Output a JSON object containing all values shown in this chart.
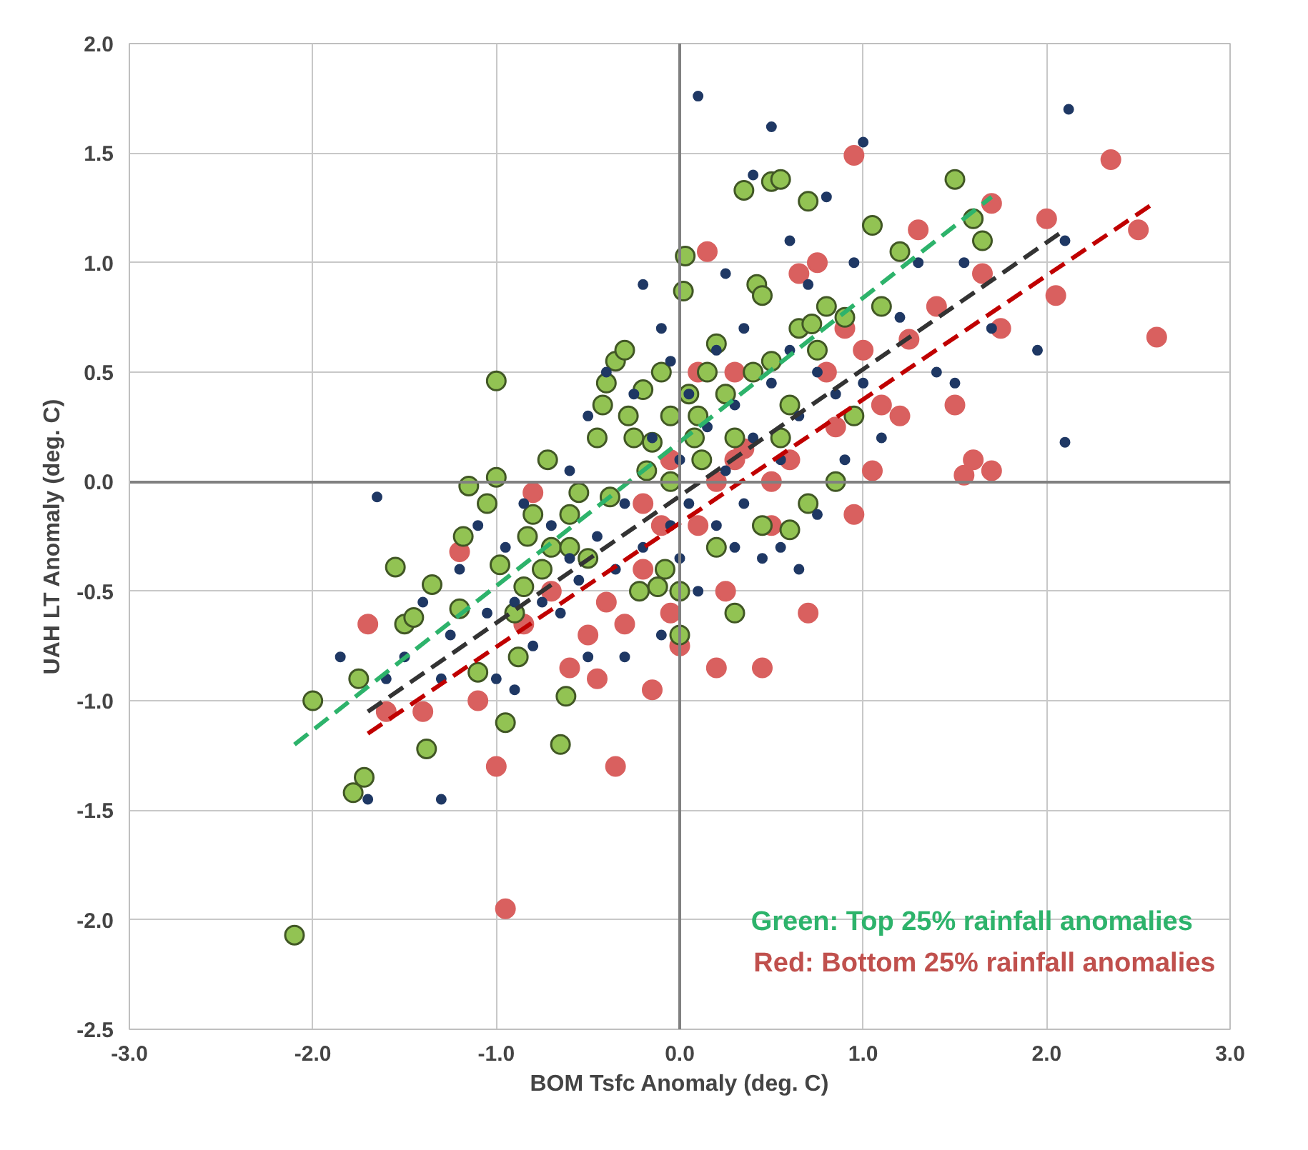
{
  "chart_data": {
    "type": "scatter",
    "xlabel": "BOM Tsfc Anomaly (deg. C)",
    "ylabel": "UAH LT Anomaly (deg. C)",
    "xlim": [
      -3.0,
      3.0
    ],
    "ylim": [
      -2.5,
      2.0
    ],
    "xticks": [
      {
        "value": -3,
        "label": "-3.0"
      },
      {
        "value": -2,
        "label": "-2.0"
      },
      {
        "value": -1,
        "label": "-1.0"
      },
      {
        "value": 0,
        "label": "0.0"
      },
      {
        "value": 1,
        "label": "1.0"
      },
      {
        "value": 2,
        "label": "2.0"
      },
      {
        "value": 3,
        "label": "3.0"
      }
    ],
    "yticks": [
      {
        "value": -2.5,
        "label": "-2.5"
      },
      {
        "value": -2,
        "label": "-2.0"
      },
      -1.5,
      {
        "value": -1,
        "label": "-1.0"
      },
      -0.5,
      {
        "value": 0,
        "label": "0.0"
      },
      0.5,
      {
        "value": 1,
        "label": "1.0"
      },
      1.5,
      {
        "value": 2,
        "label": "2.0"
      }
    ],
    "grid": true,
    "annotations": [
      "Green:    Top 25% rainfall anomalies",
      "Red: Bottom 25% rainfall anomalies"
    ],
    "series": [
      {
        "marker": "circle",
        "color": "#d9605f",
        "x": [
          -1.7,
          -1.6,
          -1.4,
          -1.2,
          -1.1,
          -1.0,
          -0.95,
          -0.85,
          -0.8,
          -0.7,
          -0.6,
          -0.5,
          -0.45,
          -0.4,
          -0.35,
          -0.3,
          -0.2,
          -0.15,
          -0.1,
          -0.05,
          0.0,
          -0.2,
          0.1,
          0.1,
          0.15,
          0.2,
          0.2,
          0.25,
          0.3,
          0.3,
          0.45,
          0.5,
          0.5,
          0.6,
          0.65,
          0.7,
          0.75,
          0.8,
          0.85,
          0.9,
          0.95,
          1.0,
          1.05,
          1.1,
          1.2,
          1.25,
          1.3,
          1.4,
          1.5,
          1.55,
          1.6,
          1.65,
          1.7,
          1.75,
          1.7,
          2.0,
          2.05,
          2.35,
          2.5,
          2.6,
          0.35,
          -0.05,
          0.95
        ],
        "values": [
          -0.65,
          -1.05,
          -1.05,
          -0.32,
          -1.0,
          -1.3,
          -1.95,
          -0.65,
          -0.05,
          -0.5,
          -0.85,
          -0.7,
          -0.9,
          -0.55,
          -1.3,
          -0.65,
          -0.4,
          -0.95,
          -0.2,
          -0.6,
          -0.75,
          -0.1,
          -0.2,
          0.5,
          1.05,
          -0.85,
          0.0,
          -0.5,
          0.1,
          0.5,
          -0.85,
          -0.2,
          0.0,
          0.1,
          0.95,
          -0.6,
          1.0,
          0.5,
          0.25,
          0.7,
          1.49,
          0.6,
          0.05,
          0.35,
          0.3,
          0.65,
          1.15,
          0.8,
          0.35,
          0.03,
          0.1,
          0.95,
          0.05,
          0.7,
          1.27,
          1.2,
          0.85,
          1.47,
          1.15,
          0.66,
          0.15,
          0.1,
          -0.15
        ]
      },
      {
        "marker": "circle",
        "color": "#92c353",
        "x": [
          -2.1,
          -2.0,
          -1.78,
          -1.72,
          -1.75,
          -1.55,
          -1.5,
          -1.45,
          -1.38,
          -1.35,
          -1.2,
          -1.18,
          -1.15,
          -1.1,
          -1.05,
          -1.0,
          -1.0,
          -0.98,
          -0.95,
          -0.9,
          -0.88,
          -0.85,
          -0.83,
          -0.8,
          -0.75,
          -0.72,
          -0.7,
          -0.65,
          -0.62,
          -0.6,
          -0.55,
          -0.5,
          -0.45,
          -0.42,
          -0.4,
          -0.38,
          -0.35,
          -0.3,
          -0.28,
          -0.25,
          -0.22,
          -0.2,
          -0.18,
          -0.15,
          -0.12,
          -0.1,
          -0.08,
          -0.05,
          -0.05,
          0.0,
          0.0,
          0.02,
          0.03,
          0.05,
          0.08,
          0.1,
          0.12,
          0.15,
          0.2,
          0.2,
          0.25,
          0.3,
          0.35,
          0.4,
          0.42,
          0.45,
          0.5,
          0.5,
          0.55,
          0.55,
          0.6,
          0.6,
          0.65,
          0.7,
          0.72,
          0.75,
          0.8,
          0.85,
          0.9,
          0.95,
          1.05,
          1.1,
          1.2,
          1.5,
          1.6,
          1.65,
          0.3,
          -0.6,
          0.7,
          0.45
        ],
        "values": [
          -2.07,
          -1.0,
          -1.42,
          -1.35,
          -0.9,
          -0.39,
          -0.65,
          -0.62,
          -1.22,
          -0.47,
          -0.58,
          -0.25,
          -0.02,
          -0.87,
          -0.1,
          0.02,
          0.46,
          -0.38,
          -1.1,
          -0.6,
          -0.8,
          -0.48,
          -0.25,
          -0.15,
          -0.4,
          0.1,
          -0.3,
          -1.2,
          -0.98,
          -0.3,
          -0.05,
          -0.35,
          0.2,
          0.35,
          0.45,
          -0.07,
          0.55,
          0.6,
          0.3,
          0.2,
          -0.5,
          0.42,
          0.05,
          0.18,
          -0.48,
          0.5,
          -0.4,
          0.3,
          0.0,
          -0.7,
          -0.5,
          0.87,
          1.03,
          0.4,
          0.2,
          0.3,
          0.1,
          0.5,
          -0.3,
          0.63,
          0.4,
          0.2,
          1.33,
          0.5,
          0.9,
          0.85,
          1.37,
          0.55,
          1.38,
          0.2,
          -0.22,
          0.35,
          0.7,
          1.28,
          0.72,
          0.6,
          0.8,
          0.0,
          0.75,
          0.3,
          1.17,
          0.8,
          1.05,
          1.38,
          1.2,
          1.1,
          -0.6,
          -0.15,
          -0.1,
          -0.2
        ]
      },
      {
        "marker": "circle",
        "color": "#1f3864",
        "x": [
          -1.85,
          -1.7,
          -1.65,
          -1.6,
          -1.5,
          -1.4,
          -1.3,
          -1.3,
          -1.25,
          -1.2,
          -1.1,
          -1.05,
          -1.0,
          -0.95,
          -0.9,
          -0.85,
          -0.8,
          -0.75,
          -0.7,
          -0.65,
          -0.6,
          -0.55,
          -0.5,
          -0.5,
          -0.45,
          -0.4,
          -0.35,
          -0.3,
          -0.3,
          -0.25,
          -0.2,
          -0.15,
          -0.1,
          -0.1,
          -0.05,
          -0.05,
          0.0,
          0.0,
          0.05,
          0.05,
          0.1,
          0.1,
          0.15,
          0.2,
          0.2,
          0.25,
          0.3,
          0.3,
          0.35,
          0.35,
          0.4,
          0.45,
          0.5,
          0.5,
          0.55,
          0.55,
          0.6,
          0.6,
          0.65,
          0.65,
          0.7,
          0.75,
          0.75,
          0.8,
          0.85,
          0.9,
          0.95,
          1.0,
          1.0,
          1.1,
          1.2,
          1.3,
          1.4,
          1.5,
          1.55,
          1.7,
          1.95,
          2.1,
          2.12,
          2.1,
          -0.2,
          0.4,
          -0.6,
          -0.9,
          0.25
        ],
        "values": [
          -0.8,
          -1.45,
          -0.07,
          -0.9,
          -0.8,
          -0.55,
          -1.45,
          -0.9,
          -0.7,
          -0.4,
          -0.2,
          -0.6,
          -0.9,
          -0.3,
          -0.95,
          -0.1,
          -0.75,
          -0.55,
          -0.2,
          -0.6,
          0.05,
          -0.45,
          -0.8,
          0.3,
          -0.25,
          0.5,
          -0.4,
          -0.1,
          -0.8,
          0.4,
          -0.3,
          0.2,
          -0.7,
          0.7,
          -0.2,
          0.55,
          0.1,
          -0.35,
          -0.1,
          0.4,
          1.76,
          -0.5,
          0.25,
          0.6,
          -0.2,
          0.05,
          0.35,
          -0.3,
          0.7,
          -0.1,
          0.2,
          -0.35,
          1.62,
          0.45,
          0.1,
          -0.3,
          0.6,
          1.1,
          0.3,
          -0.4,
          0.9,
          0.5,
          -0.15,
          1.3,
          0.4,
          0.1,
          1.0,
          1.55,
          0.45,
          0.2,
          0.75,
          1.0,
          0.5,
          0.45,
          1.0,
          0.7,
          0.6,
          0.18,
          1.7,
          1.1,
          0.9,
          1.4,
          -0.35,
          -0.55,
          0.95
        ]
      },
      {
        "type": "line",
        "line_style": "dashed",
        "color": "#2db36b",
        "x": [
          -2.1,
          1.7
        ],
        "values": [
          -1.2,
          1.3
        ]
      },
      {
        "type": "line",
        "line_style": "dashed",
        "color": "#333333",
        "x": [
          -1.7,
          2.1
        ],
        "values": [
          -1.05,
          1.15
        ]
      },
      {
        "type": "line",
        "line_style": "dashed",
        "color": "#c00000",
        "x": [
          -1.7,
          2.6
        ],
        "values": [
          -1.15,
          1.28
        ]
      }
    ]
  }
}
